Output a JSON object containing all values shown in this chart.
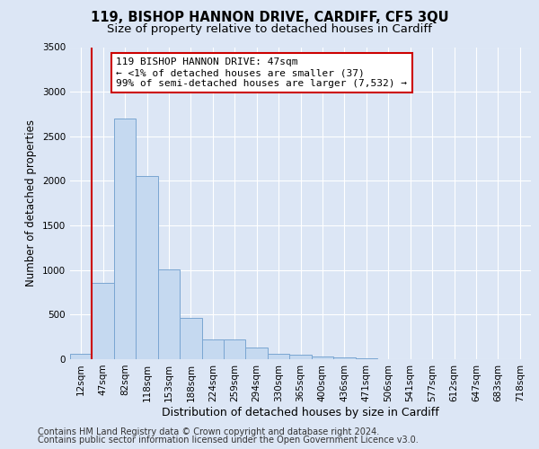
{
  "title_line1": "119, BISHOP HANNON DRIVE, CARDIFF, CF5 3QU",
  "title_line2": "Size of property relative to detached houses in Cardiff",
  "xlabel": "Distribution of detached houses by size in Cardiff",
  "ylabel": "Number of detached properties",
  "bar_values": [
    60,
    860,
    2700,
    2050,
    1010,
    460,
    220,
    220,
    130,
    65,
    55,
    35,
    25,
    15,
    0,
    0,
    0,
    0,
    0,
    0,
    0
  ],
  "bar_labels": [
    "12sqm",
    "47sqm",
    "82sqm",
    "118sqm",
    "153sqm",
    "188sqm",
    "224sqm",
    "259sqm",
    "294sqm",
    "330sqm",
    "365sqm",
    "400sqm",
    "436sqm",
    "471sqm",
    "506sqm",
    "541sqm",
    "577sqm",
    "612sqm",
    "647sqm",
    "683sqm",
    "718sqm"
  ],
  "bar_color": "#c5d9f0",
  "bar_edge_color": "#7aa6d2",
  "ylim": [
    0,
    3500
  ],
  "yticks": [
    0,
    500,
    1000,
    1500,
    2000,
    2500,
    3000,
    3500
  ],
  "annotation_text": "119 BISHOP HANNON DRIVE: 47sqm\n← <1% of detached houses are smaller (37)\n99% of semi-detached houses are larger (7,532) →",
  "annotation_box_color": "#ffffff",
  "annotation_box_edge_color": "#cc0000",
  "highlight_line_color": "#cc0000",
  "background_color": "#dce6f5",
  "grid_color": "#ffffff",
  "title_fontsize": 10.5,
  "subtitle_fontsize": 9.5,
  "tick_fontsize": 7.5,
  "ylabel_fontsize": 8.5,
  "xlabel_fontsize": 9,
  "annotation_fontsize": 8,
  "footer_fontsize": 7,
  "footer_line1": "Contains HM Land Registry data © Crown copyright and database right 2024.",
  "footer_line2": "Contains public sector information licensed under the Open Government Licence v3.0."
}
